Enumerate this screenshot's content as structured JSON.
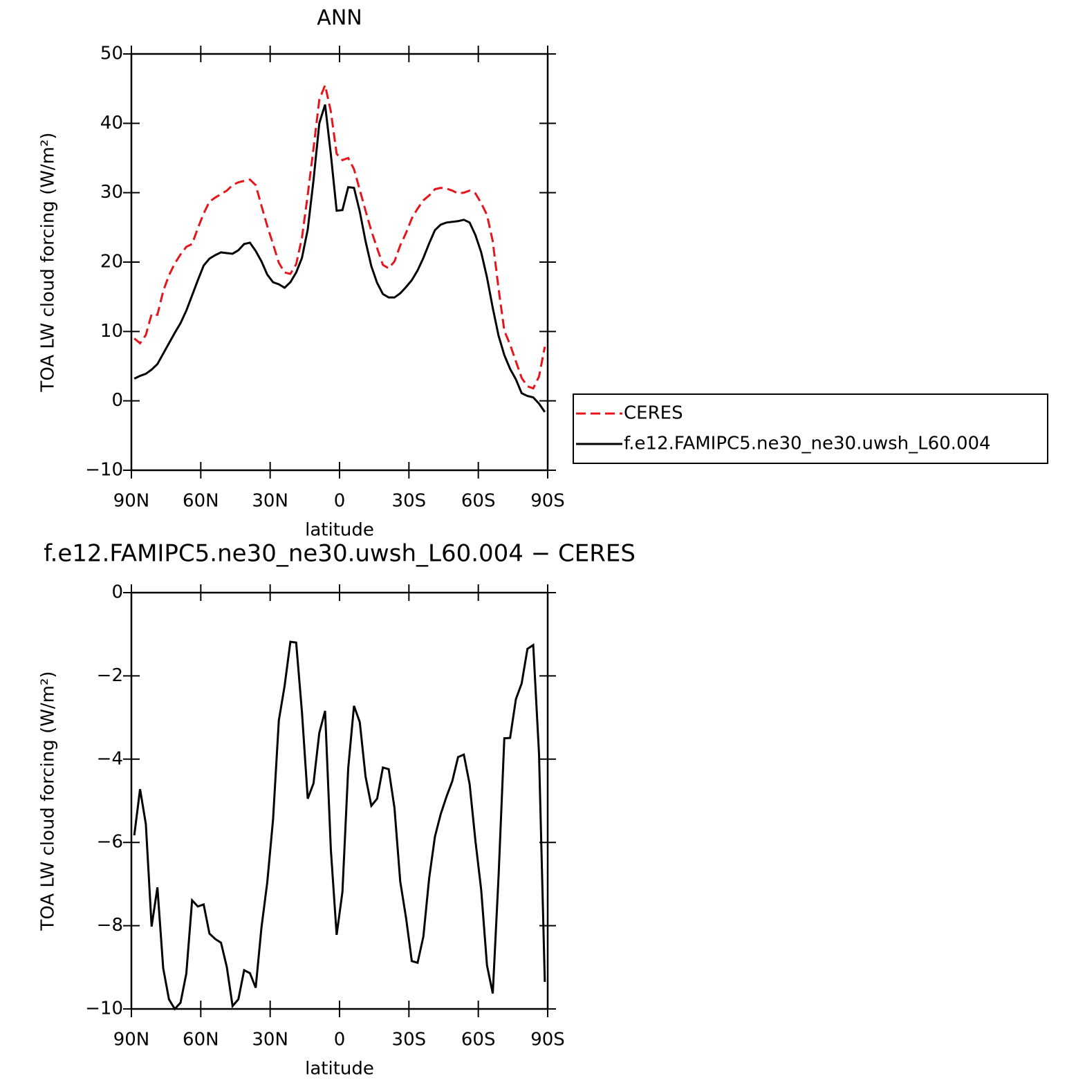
{
  "chart_data": [
    {
      "type": "line",
      "title": "ANN",
      "xlabel": "latitude",
      "ylabel": "TOA LW cloud forcing (W/m²)",
      "x": [
        88.75,
        86.25,
        83.75,
        81.25,
        78.75,
        76.25,
        73.75,
        71.25,
        68.75,
        66.25,
        63.75,
        61.25,
        58.75,
        56.25,
        53.75,
        51.25,
        48.75,
        46.25,
        43.75,
        41.25,
        38.75,
        36.25,
        33.75,
        31.25,
        28.75,
        26.25,
        23.75,
        21.25,
        18.75,
        16.25,
        13.75,
        11.25,
        8.75,
        6.25,
        3.75,
        1.25,
        -1.25,
        -3.75,
        -6.25,
        -8.75,
        -11.25,
        -13.75,
        -16.25,
        -18.75,
        -21.25,
        -23.75,
        -26.25,
        -28.75,
        -31.25,
        -33.75,
        -36.25,
        -38.75,
        -41.25,
        -43.75,
        -46.25,
        -48.75,
        -51.25,
        -53.75,
        -56.25,
        -58.75,
        -61.25,
        -63.75,
        -66.25,
        -68.75,
        -71.25,
        -73.75,
        -76.25,
        -78.75,
        -81.25,
        -83.75,
        -86.25,
        -88.75
      ],
      "series": [
        {
          "name": "CERES",
          "color": "#e8141c",
          "style": "dashed",
          "values": [
            9.0,
            8.3,
            9.5,
            12.5,
            12.4,
            15.8,
            18.1,
            19.8,
            21.1,
            22.2,
            22.6,
            24.9,
            27.0,
            28.7,
            29.3,
            29.8,
            30.3,
            31.1,
            31.5,
            31.7,
            31.9,
            31.1,
            28.1,
            25.2,
            22.6,
            19.9,
            18.5,
            18.3,
            19.7,
            23.5,
            29.7,
            36.4,
            43.4,
            45.5,
            41.7,
            35.6,
            34.7,
            35.0,
            33.4,
            30.4,
            27.4,
            24.5,
            22.0,
            19.6,
            19.1,
            20.1,
            22.4,
            24.2,
            26.3,
            27.7,
            28.9,
            29.6,
            30.5,
            30.7,
            30.6,
            30.3,
            29.9,
            30.0,
            30.3,
            29.9,
            28.5,
            26.8,
            23.0,
            16.2,
            10.1,
            8.1,
            5.7,
            3.3,
            2.1,
            1.8,
            3.5,
            7.8
          ]
        },
        {
          "name": "f.e12.FAMIPC5.ne30_ne30.uwsh_L60.004",
          "color": "#000000",
          "style": "solid",
          "values": [
            3.2,
            3.6,
            3.9,
            4.5,
            5.3,
            6.8,
            8.3,
            9.8,
            11.2,
            13.0,
            15.2,
            17.4,
            19.5,
            20.5,
            21.0,
            21.4,
            21.3,
            21.2,
            21.7,
            22.6,
            22.8,
            21.6,
            20.1,
            18.2,
            17.1,
            16.8,
            16.3,
            17.1,
            18.5,
            20.6,
            24.7,
            31.8,
            40.0,
            42.7,
            35.5,
            27.4,
            27.5,
            30.8,
            30.7,
            27.3,
            23.0,
            19.4,
            17.0,
            15.4,
            14.9,
            14.9,
            15.5,
            16.4,
            17.4,
            18.8,
            20.6,
            22.7,
            24.6,
            25.4,
            25.7,
            25.8,
            25.9,
            26.1,
            25.7,
            23.9,
            21.4,
            17.8,
            13.4,
            9.4,
            6.6,
            4.6,
            3.1,
            1.1,
            0.7,
            0.5,
            -0.4,
            -1.6
          ]
        }
      ],
      "xlim": [
        90,
        -90
      ],
      "xticks": [
        {
          "value": 90,
          "label": "90N"
        },
        {
          "value": 60,
          "label": "60N"
        },
        {
          "value": 30,
          "label": "30N"
        },
        0,
        {
          "value": -30,
          "label": "30S"
        },
        {
          "value": -60,
          "label": "60S"
        },
        {
          "value": -90,
          "label": "90S"
        }
      ],
      "ylim": [
        -10,
        50
      ],
      "yticks": [
        50,
        40,
        30,
        20,
        10,
        0,
        {
          "value": -10,
          "label": "−10"
        }
      ],
      "legend": "right"
    },
    {
      "type": "line",
      "title": "f.e12.FAMIPC5.ne30_ne30.uwsh_L60.004 − CERES",
      "xlabel": "latitude",
      "ylabel": "TOA LW cloud forcing (W/m²)",
      "x": [
        88.75,
        86.25,
        83.75,
        81.25,
        78.75,
        76.25,
        73.75,
        71.25,
        68.75,
        66.25,
        63.75,
        61.25,
        58.75,
        56.25,
        53.75,
        51.25,
        48.75,
        46.25,
        43.75,
        41.25,
        38.75,
        36.25,
        33.75,
        31.25,
        28.75,
        26.25,
        23.75,
        21.25,
        18.75,
        16.25,
        13.75,
        11.25,
        8.75,
        6.25,
        3.75,
        1.25,
        -1.25,
        -3.75,
        -6.25,
        -8.75,
        -11.25,
        -13.75,
        -16.25,
        -18.75,
        -21.25,
        -23.75,
        -26.25,
        -28.75,
        -31.25,
        -33.75,
        -36.25,
        -38.75,
        -41.25,
        -43.75,
        -46.25,
        -48.75,
        -51.25,
        -53.75,
        -56.25,
        -58.75,
        -61.25,
        -63.75,
        -66.25,
        -68.75,
        -71.25,
        -73.75,
        -76.25,
        -78.75,
        -81.25,
        -83.75,
        -86.25,
        -88.75
      ],
      "series": [
        {
          "color": "#000000",
          "style": "solid",
          "values": [
            -5.83,
            -4.72,
            -5.56,
            -8.02,
            -7.08,
            -9.02,
            -9.77,
            -10,
            -9.85,
            -9.15,
            -7.39,
            -7.54,
            -7.49,
            -8.19,
            -8.32,
            -8.41,
            -8.99,
            -9.93,
            -9.77,
            -9.07,
            -9.14,
            -9.49,
            -8.04,
            -6.96,
            -5.45,
            -3.07,
            -2.24,
            -1.18,
            -1.2,
            -2.87,
            -4.95,
            -4.58,
            -3.37,
            -2.84,
            -6.18,
            -8.22,
            -7.19,
            -4.22,
            -2.72,
            -3.11,
            -4.42,
            -5.12,
            -4.95,
            -4.2,
            -4.24,
            -5.17,
            -6.94,
            -7.81,
            -8.85,
            -8.89,
            -8.26,
            -6.86,
            -5.86,
            -5.32,
            -4.9,
            -4.53,
            -3.95,
            -3.89,
            -4.6,
            -5.96,
            -7.14,
            -8.95,
            -9.63,
            -6.83,
            -3.5,
            -3.49,
            -2.56,
            -2.18,
            -1.35,
            -1.26,
            -3.87,
            -9.35
          ]
        }
      ],
      "xlim": [
        90,
        -90
      ],
      "xticks": [
        {
          "value": 90,
          "label": "90N"
        },
        {
          "value": 60,
          "label": "60N"
        },
        {
          "value": 30,
          "label": "30N"
        },
        0,
        {
          "value": -30,
          "label": "30S"
        },
        {
          "value": -60,
          "label": "60S"
        },
        {
          "value": -90,
          "label": "90S"
        }
      ],
      "ylim": [
        -10,
        0
      ],
      "yticks": [
        0,
        {
          "value": -2,
          "label": "−2"
        },
        {
          "value": -4,
          "label": "−4"
        },
        {
          "value": -6,
          "label": "−6"
        },
        {
          "value": -8,
          "label": "−8"
        },
        {
          "value": -10,
          "label": "−10"
        }
      ]
    }
  ]
}
